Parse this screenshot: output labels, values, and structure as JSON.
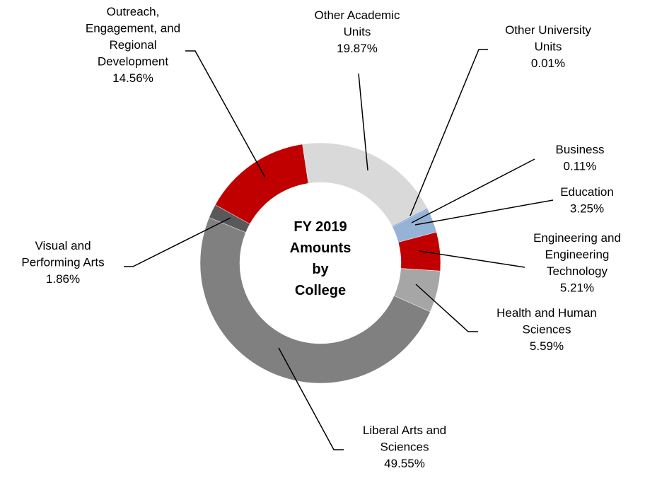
{
  "chart_data": {
    "type": "pie",
    "variant": "donut",
    "center_title": [
      "FY 2019",
      "Amounts",
      "by",
      "College"
    ],
    "legend": "none",
    "slices": [
      {
        "label": [
          "Other Academic",
          "Units"
        ],
        "value": 19.87,
        "display": "19.87%",
        "color": "#d9d9d9"
      },
      {
        "label": [
          "Other University",
          "Units"
        ],
        "value": 0.01,
        "display": "0.01%",
        "color": "#e6e6e6"
      },
      {
        "label": [
          "Business"
        ],
        "value": 0.11,
        "display": "0.11%",
        "color": "#4f81bd"
      },
      {
        "label": [
          "Education"
        ],
        "value": 3.25,
        "display": "3.25%",
        "color": "#95b3d7"
      },
      {
        "label": [
          "Engineering and",
          "Engineering",
          "Technology"
        ],
        "value": 5.21,
        "display": "5.21%",
        "color": "#c00000"
      },
      {
        "label": [
          "Health and Human",
          "Sciences"
        ],
        "value": 5.59,
        "display": "5.59%",
        "color": "#a6a6a6"
      },
      {
        "label": [
          "Liberal Arts and",
          "Sciences"
        ],
        "value": 49.55,
        "display": "49.55%",
        "color": "#808080"
      },
      {
        "label": [
          "Visual and",
          "Performing Arts"
        ],
        "value": 1.86,
        "display": "1.86%",
        "color": "#595959"
      },
      {
        "label": [
          "Outreach,",
          "Engagement, and",
          "Regional",
          "Development"
        ],
        "value": 14.56,
        "display": "14.56%",
        "color": "#c00000"
      }
    ]
  }
}
